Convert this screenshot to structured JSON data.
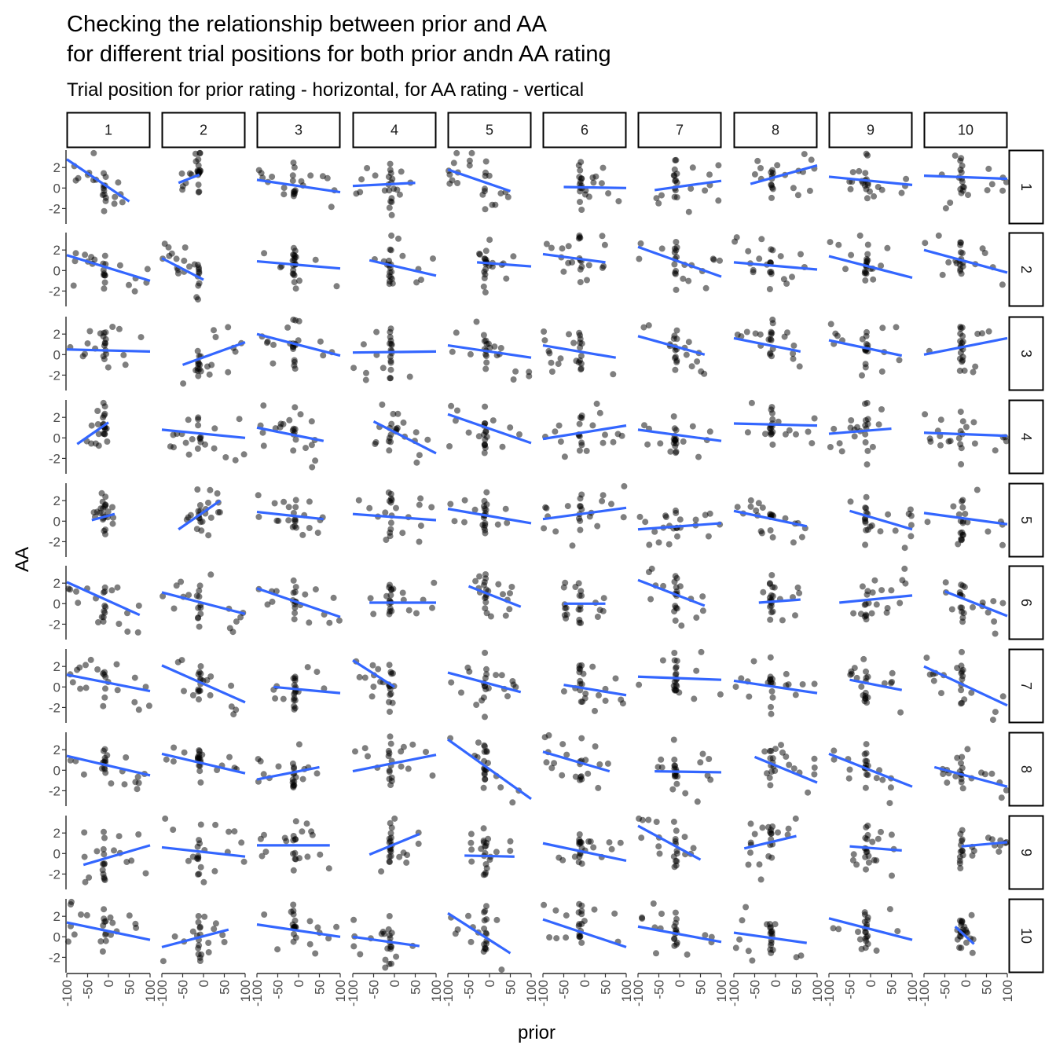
{
  "chart_data": {
    "type": "scatter",
    "title": "Checking the relationship between prior and AA",
    "title_line2": "for different trial positions for both prior andn AA rating",
    "subtitle": "Trial position for prior rating - horizontal, for AA rating - vertical",
    "xlabel": "prior",
    "ylabel": "AA",
    "facet_cols": [
      "1",
      "2",
      "3",
      "4",
      "5",
      "6",
      "7",
      "8",
      "9",
      "10"
    ],
    "facet_rows": [
      "1",
      "2",
      "3",
      "4",
      "5",
      "6",
      "7",
      "8",
      "9",
      "10"
    ],
    "xlim": [
      -100,
      100
    ],
    "ylim": [
      -3.5,
      3.7
    ],
    "x_ticks": [
      -100,
      -50,
      0,
      50,
      100
    ],
    "x_tick_labels": [
      "-100",
      "-50",
      "0",
      "50",
      "100"
    ],
    "y_ticks": [
      -2,
      0,
      2
    ],
    "y_tick_labels": [
      "-2",
      "0",
      "2"
    ],
    "point_color": "#000000",
    "point_alpha": 0.5,
    "line_color": "#3366FF",
    "grid": false,
    "fits": [
      [
        [
          -100,
          2.8,
          50,
          -1.3
        ],
        [
          -60,
          0.5,
          -10,
          1.3
        ],
        [
          -100,
          0.8,
          100,
          -0.4
        ],
        [
          -100,
          0.2,
          50,
          0.5
        ],
        [
          -100,
          1.8,
          50,
          -0.3
        ],
        [
          -50,
          0.1,
          100,
          0.0
        ],
        [
          -60,
          -0.2,
          100,
          0.7
        ],
        [
          -60,
          0.4,
          100,
          2.2
        ],
        [
          -100,
          1.1,
          100,
          0.3
        ],
        [
          -100,
          1.2,
          100,
          0.9
        ]
      ],
      [
        [
          -100,
          1.5,
          100,
          -1.0
        ],
        [
          -100,
          1.2,
          0,
          -0.9
        ],
        [
          -100,
          0.9,
          100,
          0.2
        ],
        [
          -60,
          1.0,
          100,
          -0.5
        ],
        [
          -30,
          0.8,
          100,
          0.4
        ],
        [
          -100,
          1.6,
          50,
          0.8
        ],
        [
          -100,
          2.3,
          100,
          -0.6
        ],
        [
          -100,
          0.8,
          100,
          0.1
        ],
        [
          -100,
          1.4,
          100,
          -0.7
        ],
        [
          -100,
          2.0,
          100,
          -0.2
        ]
      ],
      [
        [
          -100,
          0.5,
          100,
          0.3
        ],
        [
          -50,
          -1.0,
          100,
          1.2
        ],
        [
          -100,
          2.0,
          100,
          -0.1
        ],
        [
          -100,
          0.2,
          100,
          0.3
        ],
        [
          -100,
          0.9,
          100,
          -0.3
        ],
        [
          -100,
          0.9,
          75,
          -0.3
        ],
        [
          -100,
          1.8,
          60,
          0.0
        ],
        [
          -100,
          1.6,
          60,
          0.3
        ],
        [
          -100,
          1.4,
          75,
          -0.1
        ],
        [
          -100,
          0.0,
          100,
          1.6
        ]
      ],
      [
        [
          -75,
          -0.6,
          0,
          1.5
        ],
        [
          -100,
          0.8,
          100,
          0.0
        ],
        [
          -100,
          1.0,
          60,
          -0.3
        ],
        [
          -50,
          1.6,
          100,
          -1.5
        ],
        [
          -100,
          2.3,
          100,
          -0.5
        ],
        [
          -100,
          -0.1,
          100,
          1.2
        ],
        [
          -100,
          0.8,
          100,
          -0.3
        ],
        [
          -100,
          1.4,
          100,
          1.2
        ],
        [
          -100,
          0.4,
          50,
          0.9
        ],
        [
          -100,
          0.5,
          100,
          0.2
        ]
      ],
      [
        [
          -40,
          0.1,
          15,
          0.7
        ],
        [
          -60,
          -0.8,
          40,
          2.0
        ],
        [
          -100,
          0.9,
          60,
          0.2
        ],
        [
          -100,
          0.7,
          100,
          0.1
        ],
        [
          -100,
          1.2,
          100,
          -0.2
        ],
        [
          -100,
          0.2,
          100,
          1.3
        ],
        [
          -100,
          -0.8,
          100,
          -0.2
        ],
        [
          -100,
          1.0,
          75,
          -0.5
        ],
        [
          -50,
          1.0,
          100,
          -0.8
        ],
        [
          -100,
          0.8,
          100,
          -0.3
        ]
      ],
      [
        [
          -100,
          2.1,
          75,
          -1.1
        ],
        [
          -100,
          1.1,
          100,
          -1.0
        ],
        [
          -100,
          1.5,
          100,
          -1.3
        ],
        [
          -60,
          0.1,
          100,
          0.1
        ],
        [
          -50,
          1.7,
          75,
          -0.3
        ],
        [
          -50,
          0.0,
          50,
          0.0
        ],
        [
          -100,
          2.3,
          60,
          -0.2
        ],
        [
          -40,
          0.1,
          60,
          0.4
        ],
        [
          -75,
          0.1,
          100,
          0.8
        ],
        [
          -50,
          1.2,
          100,
          -1.2
        ]
      ],
      [
        [
          -100,
          1.2,
          100,
          -0.4
        ],
        [
          -100,
          2.1,
          100,
          -1.5
        ],
        [
          -60,
          0.0,
          100,
          -0.6
        ],
        [
          -100,
          2.6,
          0,
          0.0
        ],
        [
          -100,
          1.4,
          75,
          -0.5
        ],
        [
          -50,
          0.2,
          100,
          -0.8
        ],
        [
          -100,
          1.0,
          100,
          0.7
        ],
        [
          -100,
          0.6,
          100,
          -0.6
        ],
        [
          -50,
          0.7,
          75,
          -0.3
        ],
        [
          -100,
          2.0,
          100,
          -1.8
        ]
      ],
      [
        [
          -100,
          1.4,
          100,
          -0.5
        ],
        [
          -100,
          1.6,
          100,
          -0.3
        ],
        [
          -100,
          -0.9,
          50,
          0.3
        ],
        [
          -100,
          -0.1,
          100,
          1.5
        ],
        [
          -100,
          3.0,
          100,
          -2.8
        ],
        [
          -100,
          1.8,
          60,
          -0.1
        ],
        [
          -60,
          -0.1,
          100,
          -0.2
        ],
        [
          -50,
          1.3,
          100,
          -1.2
        ],
        [
          -100,
          1.6,
          100,
          -1.6
        ],
        [
          -75,
          0.3,
          100,
          -1.6
        ]
      ],
      [
        [
          -60,
          -1.1,
          100,
          0.8
        ],
        [
          -100,
          0.6,
          100,
          -0.3
        ],
        [
          -100,
          0.8,
          75,
          0.8
        ],
        [
          -60,
          -0.1,
          60,
          1.9
        ],
        [
          -60,
          -0.2,
          60,
          -0.3
        ],
        [
          -100,
          1.0,
          100,
          -0.7
        ],
        [
          -100,
          2.7,
          50,
          -0.6
        ],
        [
          -75,
          0.5,
          50,
          1.7
        ],
        [
          -50,
          0.7,
          75,
          0.3
        ],
        [
          -10,
          0.7,
          100,
          1.1
        ]
      ],
      [
        [
          -100,
          1.4,
          100,
          -0.3
        ],
        [
          -100,
          -1.0,
          60,
          0.7
        ],
        [
          -100,
          1.2,
          100,
          0.0
        ],
        [
          -100,
          0.0,
          60,
          -0.9
        ],
        [
          -100,
          2.3,
          50,
          -1.6
        ],
        [
          -100,
          1.7,
          100,
          -1.0
        ],
        [
          -100,
          1.0,
          100,
          -0.5
        ],
        [
          -100,
          0.4,
          75,
          -0.6
        ],
        [
          -100,
          1.8,
          100,
          -0.3
        ],
        [
          -25,
          1.0,
          20,
          -0.7
        ]
      ]
    ]
  }
}
